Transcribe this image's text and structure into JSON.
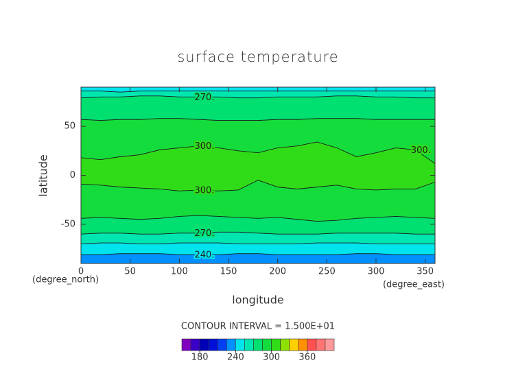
{
  "chart_data": {
    "type": "contour",
    "title": "surface temperature",
    "x_label": "longitude",
    "y_label": "latitude",
    "x_unit": "(degree_east)",
    "y_unit": "(degree_north)",
    "interval_text": "CONTOUR INTERVAL = 1.500E+01",
    "interval": 15,
    "xlim": [
      0,
      360
    ],
    "ylim": [
      -90,
      90
    ],
    "xticks": [
      0,
      50,
      100,
      150,
      200,
      250,
      300,
      350
    ],
    "yticks": [
      -50,
      0,
      50
    ],
    "x": [
      0,
      20,
      40,
      60,
      80,
      100,
      120,
      140,
      160,
      180,
      200,
      220,
      240,
      260,
      280,
      300,
      320,
      340,
      360
    ],
    "contours": [
      {
        "level": 255,
        "values": [
          86,
          86,
          85,
          86,
          86,
          86,
          86,
          86,
          86,
          86,
          86,
          86,
          86,
          86,
          86,
          86,
          86,
          86,
          86
        ]
      },
      {
        "level": 270,
        "label": "270.",
        "values": [
          79,
          80,
          80,
          81,
          81,
          80,
          80,
          80,
          79,
          79,
          80,
          80,
          80,
          81,
          81,
          80,
          80,
          79,
          79
        ]
      },
      {
        "level": 285,
        "values": [
          57,
          56,
          57,
          57,
          58,
          58,
          57,
          56,
          56,
          56,
          57,
          57,
          58,
          58,
          58,
          57,
          57,
          57,
          57
        ]
      },
      {
        "level": 300,
        "label": "300.",
        "values": [
          18,
          16,
          19,
          21,
          26,
          28,
          30,
          28,
          25,
          23,
          28,
          30,
          34,
          28,
          19,
          23,
          28,
          26,
          12
        ]
      },
      {
        "level": 300,
        "label": "300.",
        "values": [
          -9,
          -10,
          -12,
          -13,
          -14,
          -16,
          -15,
          -16,
          -15,
          -5,
          -12,
          -14,
          -12,
          -10,
          -14,
          -15,
          -14,
          -14,
          -7
        ]
      },
      {
        "level": 285,
        "values": [
          -44,
          -43,
          -44,
          -45,
          -44,
          -42,
          -41,
          -42,
          -43,
          -44,
          -43,
          -45,
          -47,
          -46,
          -44,
          -43,
          -42,
          -43,
          -44
        ]
      },
      {
        "level": 270,
        "label": "270.",
        "values": [
          -60,
          -59,
          -59,
          -60,
          -60,
          -59,
          -59,
          -58,
          -58,
          -59,
          -60,
          -60,
          -60,
          -59,
          -59,
          -59,
          -59,
          -60,
          -60
        ]
      },
      {
        "level": 255,
        "values": [
          -70,
          -69,
          -69,
          -70,
          -70,
          -69,
          -69,
          -69,
          -70,
          -70,
          -70,
          -70,
          -69,
          -69,
          -69,
          -70,
          -70,
          -70,
          -70
        ]
      },
      {
        "level": 240,
        "label": "240.",
        "values": [
          -81,
          -81,
          -80,
          -80,
          -80,
          -81,
          -81,
          -81,
          -80,
          -80,
          -81,
          -81,
          -81,
          -81,
          -80,
          -80,
          -81,
          -81,
          -81
        ]
      }
    ],
    "colorbar": {
      "levels": [
        150,
        165,
        180,
        195,
        210,
        225,
        240,
        255,
        270,
        285,
        300,
        315,
        330,
        345,
        360,
        375,
        390,
        405
      ],
      "colors": [
        "#7f00bf",
        "#3a00c8",
        "#0000b4",
        "#0010d8",
        "#0040f0",
        "#0090ff",
        "#00e4ee",
        "#00e6b0",
        "#00e070",
        "#14dc3c",
        "#30dc18",
        "#8ee000",
        "#ffd000",
        "#ff9000",
        "#ff5050",
        "#ff7474",
        "#ff9a9a"
      ],
      "ticks": [
        180,
        240,
        300,
        360
      ]
    }
  }
}
